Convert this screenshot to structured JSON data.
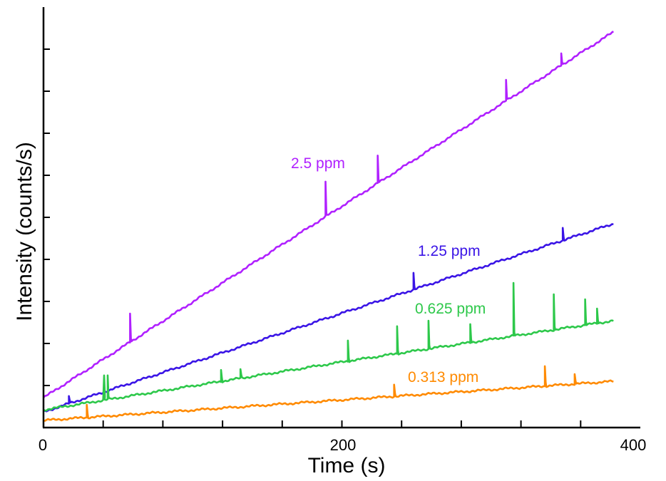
{
  "chart_data": {
    "type": "line",
    "title": "",
    "xlabel": "Time (s)",
    "ylabel": "Intensity (counts/s)",
    "xlim": [
      0,
      400
    ],
    "x_ticks": [
      0,
      40,
      80,
      120,
      160,
      200,
      240,
      280,
      320,
      360,
      400
    ],
    "x_tick_labels": [
      "0",
      "200",
      "400"
    ],
    "ylim": [
      0,
      10
    ],
    "y_ticks": [
      1,
      2,
      3,
      4,
      5,
      6,
      7,
      8,
      9
    ],
    "y_tick_labels_shown": false,
    "grid": false,
    "legend": "inline labels",
    "series": [
      {
        "name": "2.5 ppm",
        "color": "#b020ff",
        "baseline": [
          [
            0,
            0.71
          ],
          [
            382,
            9.41
          ]
        ],
        "spikes": [
          [
            58,
            2.71
          ],
          [
            189,
            5.85
          ],
          [
            224,
            6.47
          ],
          [
            310,
            8.27
          ],
          [
            347,
            8.9
          ]
        ]
      },
      {
        "name": "1.25 ppm",
        "color": "#3a14e6",
        "baseline": [
          [
            0,
            0.37
          ],
          [
            200,
            2.72
          ],
          [
            382,
            4.85
          ]
        ],
        "spikes": [
          [
            17,
            0.75
          ],
          [
            248,
            3.68
          ],
          [
            348,
            4.75
          ]
        ]
      },
      {
        "name": "0.625 ppm",
        "color": "#2dc84a",
        "baseline": [
          [
            0,
            0.42
          ],
          [
            200,
            1.56
          ],
          [
            382,
            2.54
          ]
        ],
        "spikes": [
          [
            40.6,
            1.24
          ],
          [
            43,
            1.24
          ],
          [
            119,
            1.37
          ],
          [
            132,
            1.39
          ],
          [
            204,
            2.07
          ],
          [
            237,
            2.41
          ],
          [
            258,
            2.54
          ],
          [
            286,
            2.46
          ],
          [
            315,
            3.44
          ],
          [
            342,
            3.17
          ],
          [
            363,
            3.05
          ],
          [
            371,
            2.83
          ]
        ]
      },
      {
        "name": "0.313 ppm",
        "color": "#ff8a00",
        "baseline": [
          [
            0,
            0.17
          ],
          [
            382,
            1.1
          ]
        ],
        "spikes": [
          [
            29,
            0.54
          ],
          [
            235,
            1.02
          ],
          [
            336,
            1.46
          ],
          [
            356,
            1.27
          ]
        ]
      }
    ]
  }
}
